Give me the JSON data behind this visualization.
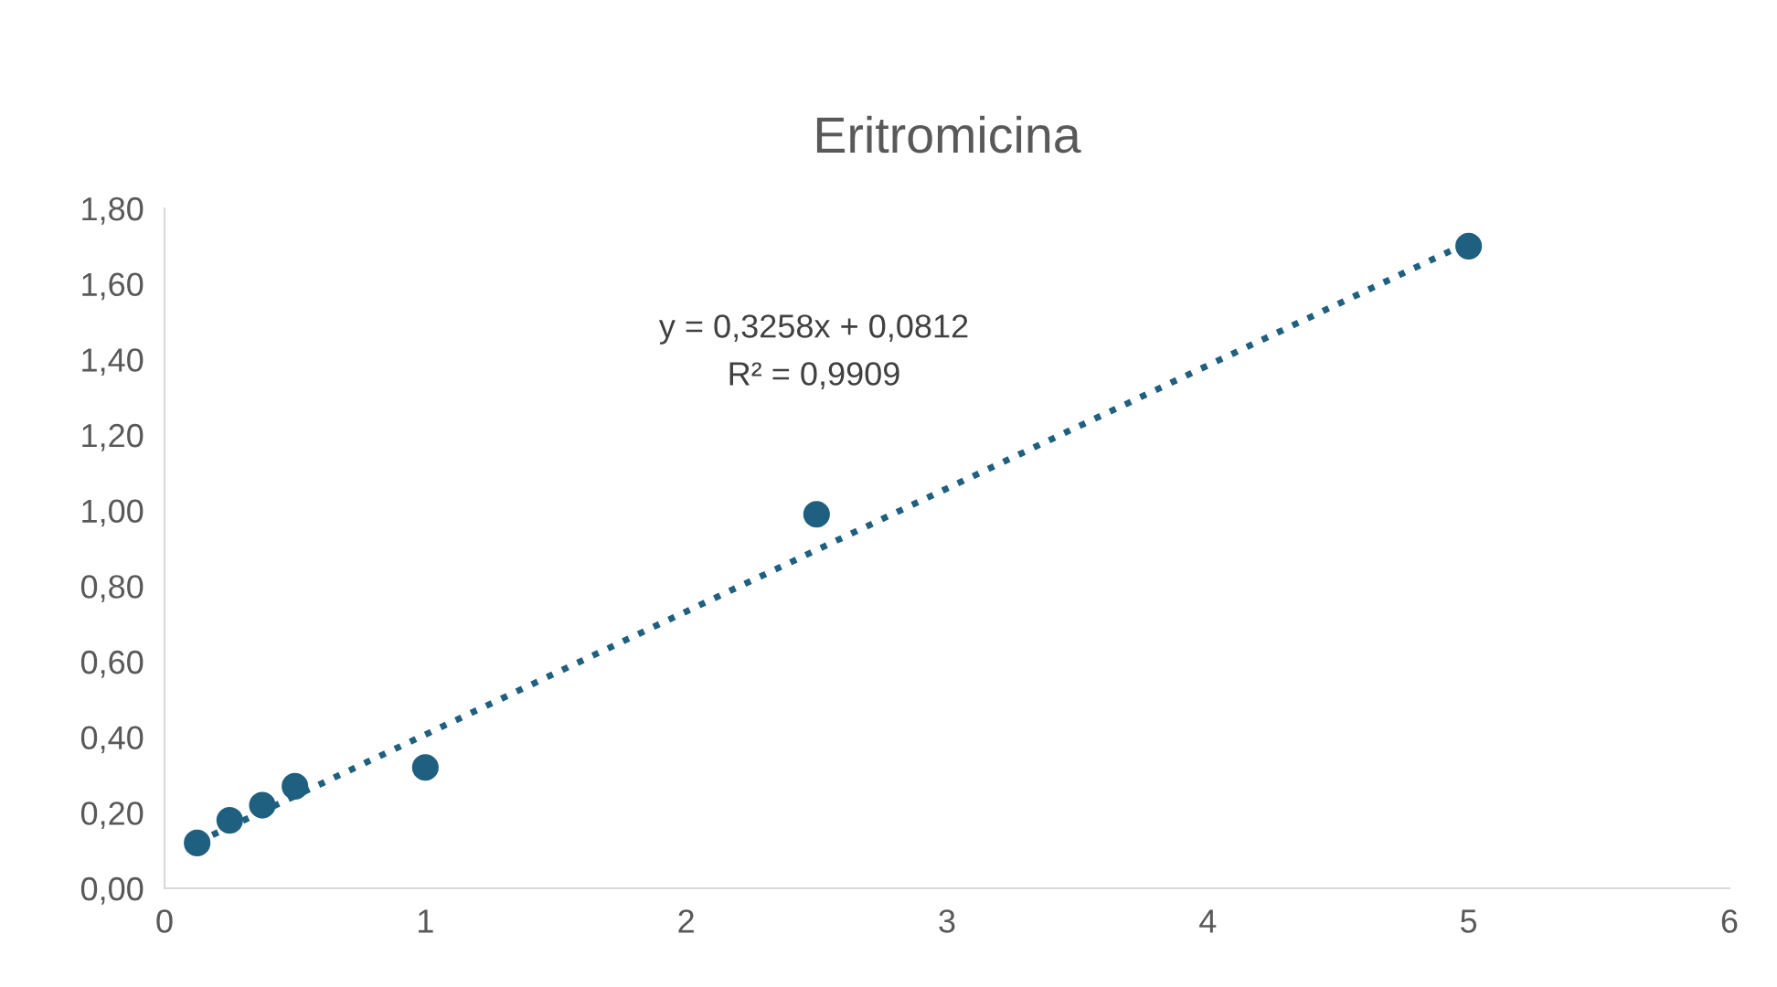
{
  "chart_data": {
    "type": "scatter",
    "title": "Eritromicina",
    "series": [
      {
        "color": "#1f5f7f",
        "marker": "circle",
        "x": [
          0.125,
          0.25,
          0.375,
          0.5,
          1,
          2.5,
          5
        ],
        "values": [
          0.12,
          0.18,
          0.22,
          0.27,
          0.32,
          0.99,
          1.7
        ]
      },
      {
        "type": "line",
        "color": "#1f5f7f",
        "marker": "none",
        "line_style": "dotted",
        "x": [
          0.125,
          5
        ],
        "values": [
          0.122,
          1.71
        ]
      }
    ],
    "annotations": [
      "y = 0,3258x + 0,0812",
      "R² = 0,9909"
    ],
    "xlim": [
      0,
      6
    ],
    "xticks": [
      0,
      1,
      2,
      3,
      4,
      5,
      6
    ],
    "ylim": [
      0,
      1.8
    ],
    "yticks": [
      {
        "value": 0,
        "label": "0,00"
      },
      {
        "value": 0.2,
        "label": "0,20"
      },
      {
        "value": 0.4,
        "label": "0,40"
      },
      {
        "value": 0.6,
        "label": "0,60"
      },
      {
        "value": 0.8,
        "label": "0,80"
      },
      {
        "value": 1.0,
        "label": "1,00"
      },
      {
        "value": 1.2,
        "label": "1,20"
      },
      {
        "value": 1.4,
        "label": "1,40"
      },
      {
        "value": 1.6,
        "label": "1,60"
      },
      {
        "value": 1.8,
        "label": "1,80"
      }
    ],
    "grid": false,
    "legend": false
  }
}
